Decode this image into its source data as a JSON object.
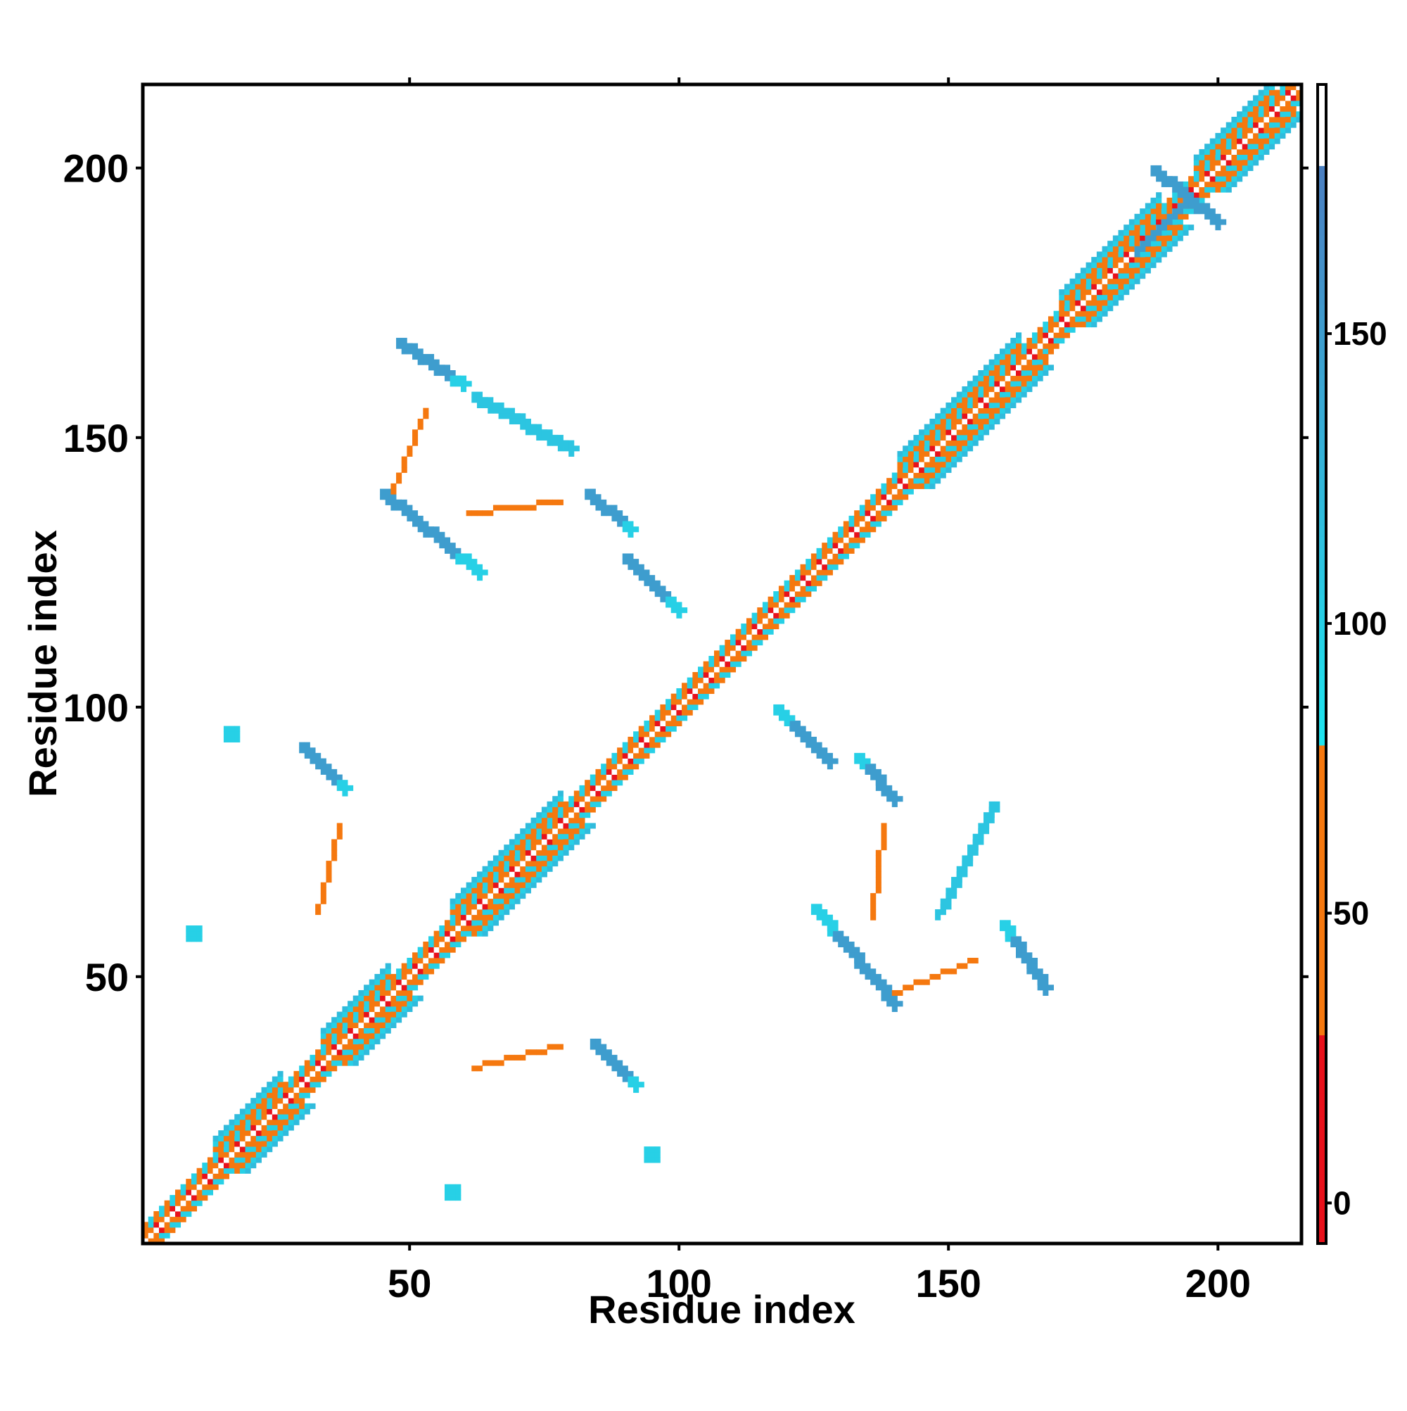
{
  "chart_data": {
    "type": "heatmap",
    "title": "",
    "xlabel": "Residue index",
    "ylabel": "Residue index",
    "xlim": [
      1,
      215
    ],
    "ylim": [
      1,
      215
    ],
    "x_ticks": [
      50,
      100,
      150,
      200
    ],
    "y_ticks": [
      50,
      100,
      150,
      200
    ],
    "colorbar": {
      "ticks": [
        0,
        50,
        100,
        150
      ],
      "range": [
        -7,
        193
      ],
      "bands": [
        {
          "from": -7,
          "to": 30,
          "color": "#e8111b"
        },
        {
          "from": 30,
          "to": 80,
          "color": "#f5780f"
        },
        {
          "from": 80,
          "to": 180,
          "color": "#1ee4ef"
        },
        {
          "from": 180,
          "to": 193,
          "color": "#ffffff"
        }
      ],
      "gradient_to": "#4c7ec0"
    },
    "features": [
      {
        "name": "main-diagonal",
        "kind": "diagonal-band",
        "start": [
          1,
          1
        ],
        "end": [
          215,
          215
        ],
        "width": 3,
        "value": 60
      },
      {
        "name": "helix-1",
        "kind": "helix",
        "center": [
          20,
          20
        ],
        "length": 12,
        "value": 70
      },
      {
        "name": "helix-2",
        "kind": "helix",
        "center": [
          40,
          40
        ],
        "length": 12,
        "value": 70
      },
      {
        "name": "helix-3",
        "kind": "helix",
        "center": [
          68,
          68
        ],
        "length": 20,
        "value": 80
      },
      {
        "name": "helix-4",
        "kind": "helix",
        "center": [
          152,
          152
        ],
        "length": 22,
        "value": 80
      },
      {
        "name": "helix-5",
        "kind": "helix",
        "center": [
          180,
          180
        ],
        "length": 18,
        "value": 80
      },
      {
        "name": "helix-6",
        "kind": "helix",
        "center": [
          203,
          203
        ],
        "length": 14,
        "value": 80
      },
      {
        "name": "antiparallel-upper-1",
        "kind": "segment",
        "start": [
          48,
          168
        ],
        "end": [
          60,
          160
        ],
        "value": 150,
        "tail_value": 100
      },
      {
        "name": "antiparallel-upper-2",
        "kind": "segment",
        "start": [
          45,
          140
        ],
        "end": [
          63,
          125
        ],
        "value": 150,
        "tail_value": 100
      },
      {
        "name": "antiparallel-upper-3",
        "kind": "segment",
        "start": [
          83,
          140
        ],
        "end": [
          91,
          133
        ],
        "value": 150,
        "tail_value": 100
      },
      {
        "name": "antiparallel-upper-4",
        "kind": "segment",
        "start": [
          90,
          128
        ],
        "end": [
          100,
          118
        ],
        "value": 150,
        "tail_value": 100
      },
      {
        "name": "scatter-upper-1",
        "kind": "segment",
        "start": [
          62,
          158
        ],
        "end": [
          80,
          148
        ],
        "value": 110
      },
      {
        "name": "scatter-upper-2",
        "kind": "segment",
        "start": [
          169,
          166
        ],
        "end": [
          166,
          162
        ],
        "value": 60
      },
      {
        "name": "antiparallel-lower-1",
        "kind": "segment",
        "start": [
          168,
          48
        ],
        "end": [
          160,
          60
        ],
        "value": 150,
        "tail_value": 100
      },
      {
        "name": "antiparallel-lower-2",
        "kind": "segment",
        "start": [
          140,
          45
        ],
        "end": [
          125,
          63
        ],
        "value": 150,
        "tail_value": 100
      },
      {
        "name": "antiparallel-lower-3",
        "kind": "segment",
        "start": [
          140,
          83
        ],
        "end": [
          133,
          91
        ],
        "value": 150,
        "tail_value": 100
      },
      {
        "name": "antiparallel-lower-4",
        "kind": "segment",
        "start": [
          128,
          90
        ],
        "end": [
          118,
          100
        ],
        "value": 150,
        "tail_value": 100
      },
      {
        "name": "antiparallel-lower-5",
        "kind": "segment",
        "start": [
          30,
          93
        ],
        "end": [
          38,
          85
        ],
        "value": 150,
        "tail_value": 100
      },
      {
        "name": "antiparallel-lower-6",
        "kind": "segment",
        "start": [
          84,
          38
        ],
        "end": [
          92,
          30
        ],
        "value": 150,
        "tail_value": 100
      },
      {
        "name": "scatter-lower-1",
        "kind": "segment",
        "start": [
          158,
          82
        ],
        "end": [
          148,
          62
        ],
        "value": 110
      },
      {
        "name": "cross-top-a",
        "kind": "segment",
        "start": [
          188,
          200
        ],
        "end": [
          200,
          190
        ],
        "value": 150
      },
      {
        "name": "cross-top-b",
        "kind": "segment",
        "start": [
          185,
          185
        ],
        "end": [
          193,
          193
        ],
        "value": 150
      },
      {
        "name": "patch-1",
        "kind": "blob",
        "center": [
          17,
          95
        ],
        "size": 2,
        "value": 100
      },
      {
        "name": "patch-2",
        "kind": "blob",
        "center": [
          10,
          58
        ],
        "size": 2,
        "value": 100
      },
      {
        "name": "patch-3",
        "kind": "blob",
        "center": [
          95,
          17
        ],
        "size": 2,
        "value": 100
      },
      {
        "name": "patch-4",
        "kind": "blob",
        "center": [
          58,
          10
        ],
        "size": 2,
        "value": 100
      },
      {
        "name": "orange-arc-upper-1",
        "kind": "segment",
        "start": [
          47,
          140
        ],
        "end": [
          53,
          155
        ],
        "value": 60
      },
      {
        "name": "orange-arc-upper-2",
        "kind": "segment",
        "start": [
          61,
          136
        ],
        "end": [
          78,
          138
        ],
        "value": 60
      },
      {
        "name": "orange-arc-lower-1",
        "kind": "segment",
        "start": [
          140,
          47
        ],
        "end": [
          155,
          53
        ],
        "value": 60
      },
      {
        "name": "orange-arc-lower-2",
        "kind": "segment",
        "start": [
          136,
          61
        ],
        "end": [
          138,
          78
        ],
        "value": 60
      },
      {
        "name": "orange-arc-lower-3",
        "kind": "segment",
        "start": [
          33,
          62
        ],
        "end": [
          37,
          78
        ],
        "value": 60
      },
      {
        "name": "orange-arc-lower-4",
        "kind": "segment",
        "start": [
          62,
          33
        ],
        "end": [
          78,
          37
        ],
        "value": 60
      }
    ]
  }
}
